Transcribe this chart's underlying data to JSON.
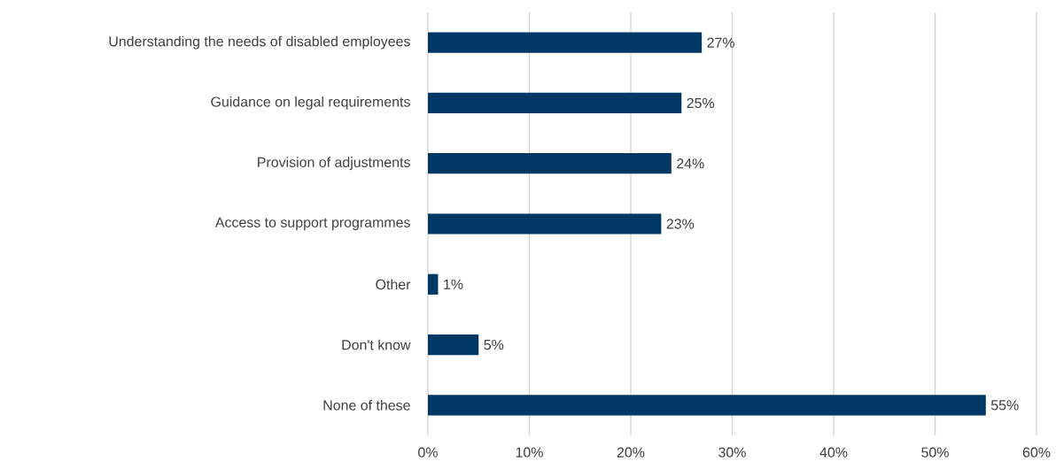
{
  "chart_data": {
    "type": "bar",
    "orientation": "horizontal",
    "categories": [
      "Understanding the needs of disabled employees",
      "Guidance on legal requirements",
      "Provision of adjustments",
      "Access to support programmes",
      "Other",
      "Don't know",
      "None of these"
    ],
    "values": [
      27,
      25,
      24,
      23,
      1,
      5,
      55
    ],
    "value_labels": [
      "27%",
      "25%",
      "24%",
      "23%",
      "1%",
      "5%",
      "55%"
    ],
    "color": "#003865",
    "xlim": [
      0,
      60
    ],
    "xticks": [
      {
        "value": 0,
        "label": "0%"
      },
      {
        "value": 10,
        "label": "10%"
      },
      {
        "value": 20,
        "label": "20%"
      },
      {
        "value": 30,
        "label": "30%"
      },
      {
        "value": 40,
        "label": "40%"
      },
      {
        "value": 50,
        "label": "50%"
      },
      {
        "value": 60,
        "label": "60%"
      }
    ],
    "grid": "x"
  }
}
